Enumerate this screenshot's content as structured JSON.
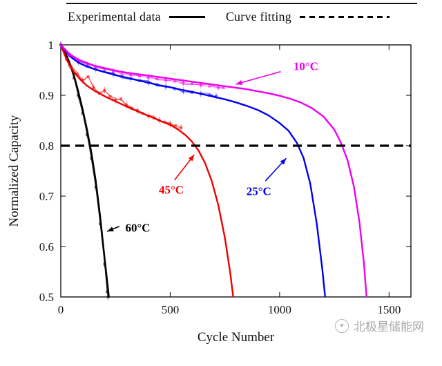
{
  "legend": {
    "items": [
      {
        "label": "Experimental data",
        "style": "solid"
      },
      {
        "label": "Curve fitting",
        "style": "dashed"
      }
    ]
  },
  "watermark": {
    "text": "北极星储能网",
    "icon": "star-logo"
  },
  "chart_data": {
    "type": "line",
    "title": "",
    "xlabel": "Cycle Number",
    "ylabel": "Normalized Capacity",
    "xlim": [
      0,
      1600
    ],
    "ylim": [
      0.5,
      1.0
    ],
    "xtick_values": [
      0,
      500,
      1000,
      1500
    ],
    "xtick_labels": [
      "0",
      "500",
      "1000",
      "1500"
    ],
    "ytick_values": [
      0.5,
      0.6,
      0.7,
      0.8,
      0.9,
      1.0
    ],
    "ytick_labels": [
      "0.5",
      "0.6",
      "0.7",
      "0.8",
      "0.9",
      "1"
    ],
    "grid": false,
    "legend_position": "top",
    "threshold": {
      "y": 0.8,
      "style": "dashed",
      "color": "#000000"
    },
    "series": [
      {
        "name": "60°C",
        "color": "#000000",
        "experimental": [
          [
            0,
            1.0
          ],
          [
            20,
            0.982
          ],
          [
            40,
            0.96
          ],
          [
            60,
            0.934
          ],
          [
            80,
            0.9
          ],
          [
            100,
            0.864
          ],
          [
            120,
            0.822
          ],
          [
            140,
            0.775
          ],
          [
            160,
            0.718
          ],
          [
            180,
            0.645
          ],
          [
            200,
            0.565
          ],
          [
            212,
            0.51
          ],
          [
            216,
            0.5
          ]
        ],
        "fit": [
          [
            0,
            1.0
          ],
          [
            20,
            0.985
          ],
          [
            40,
            0.965
          ],
          [
            60,
            0.94
          ],
          [
            80,
            0.908
          ],
          [
            100,
            0.872
          ],
          [
            120,
            0.832
          ],
          [
            140,
            0.786
          ],
          [
            160,
            0.73
          ],
          [
            180,
            0.66
          ],
          [
            200,
            0.578
          ],
          [
            215,
            0.52
          ],
          [
            220,
            0.5
          ]
        ]
      },
      {
        "name": "45°C",
        "color": "#ee0000",
        "experimental": [
          [
            0,
            1.0
          ],
          [
            25,
            0.972
          ],
          [
            50,
            0.955
          ],
          [
            75,
            0.942
          ],
          [
            100,
            0.93
          ],
          [
            125,
            0.937
          ],
          [
            150,
            0.915
          ],
          [
            175,
            0.905
          ],
          [
            200,
            0.91
          ],
          [
            225,
            0.898
          ],
          [
            250,
            0.89
          ],
          [
            275,
            0.893
          ],
          [
            300,
            0.881
          ],
          [
            325,
            0.874
          ],
          [
            350,
            0.87
          ],
          [
            375,
            0.864
          ],
          [
            400,
            0.859
          ],
          [
            425,
            0.855
          ],
          [
            450,
            0.851
          ],
          [
            475,
            0.847
          ],
          [
            500,
            0.843
          ],
          [
            525,
            0.84
          ],
          [
            550,
            0.836
          ]
        ],
        "fit": [
          [
            0,
            1.0
          ],
          [
            30,
            0.968
          ],
          [
            60,
            0.946
          ],
          [
            90,
            0.931
          ],
          [
            120,
            0.919
          ],
          [
            150,
            0.91
          ],
          [
            180,
            0.903
          ],
          [
            210,
            0.896
          ],
          [
            240,
            0.89
          ],
          [
            270,
            0.884
          ],
          [
            300,
            0.878
          ],
          [
            330,
            0.872
          ],
          [
            360,
            0.867
          ],
          [
            390,
            0.861
          ],
          [
            420,
            0.856
          ],
          [
            450,
            0.85
          ],
          [
            480,
            0.845
          ],
          [
            510,
            0.839
          ],
          [
            540,
            0.831
          ],
          [
            570,
            0.821
          ],
          [
            600,
            0.808
          ],
          [
            630,
            0.79
          ],
          [
            660,
            0.765
          ],
          [
            690,
            0.73
          ],
          [
            720,
            0.682
          ],
          [
            750,
            0.617
          ],
          [
            775,
            0.545
          ],
          [
            788,
            0.5
          ]
        ]
      },
      {
        "name": "25°C",
        "color": "#0000ee",
        "experimental": [
          [
            0,
            1.0
          ],
          [
            40,
            0.979
          ],
          [
            80,
            0.966
          ],
          [
            120,
            0.958
          ],
          [
            160,
            0.952
          ],
          [
            200,
            0.947
          ],
          [
            240,
            0.942
          ],
          [
            280,
            0.938
          ],
          [
            320,
            0.933
          ],
          [
            360,
            0.929
          ],
          [
            400,
            0.925
          ],
          [
            440,
            0.921
          ],
          [
            480,
            0.917
          ],
          [
            520,
            0.913
          ],
          [
            560,
            0.909
          ],
          [
            600,
            0.906
          ],
          [
            640,
            0.903
          ],
          [
            680,
            0.9
          ],
          [
            710,
            0.898
          ]
        ],
        "fit": [
          [
            0,
            1.0
          ],
          [
            40,
            0.978
          ],
          [
            80,
            0.965
          ],
          [
            120,
            0.957
          ],
          [
            160,
            0.951
          ],
          [
            200,
            0.946
          ],
          [
            250,
            0.94
          ],
          [
            300,
            0.935
          ],
          [
            350,
            0.93
          ],
          [
            400,
            0.925
          ],
          [
            450,
            0.92
          ],
          [
            500,
            0.916
          ],
          [
            550,
            0.911
          ],
          [
            600,
            0.907
          ],
          [
            650,
            0.902
          ],
          [
            700,
            0.897
          ],
          [
            750,
            0.892
          ],
          [
            800,
            0.886
          ],
          [
            850,
            0.879
          ],
          [
            900,
            0.871
          ],
          [
            950,
            0.86
          ],
          [
            1000,
            0.845
          ],
          [
            1040,
            0.83
          ],
          [
            1080,
            0.805
          ],
          [
            1110,
            0.775
          ],
          [
            1140,
            0.725
          ],
          [
            1170,
            0.645
          ],
          [
            1195,
            0.555
          ],
          [
            1208,
            0.5
          ]
        ]
      },
      {
        "name": "10°C",
        "color": "#ee00ee",
        "experimental": [
          [
            0,
            1.0
          ],
          [
            40,
            0.98
          ],
          [
            80,
            0.969
          ],
          [
            120,
            0.962
          ],
          [
            160,
            0.957
          ],
          [
            200,
            0.952
          ],
          [
            240,
            0.948
          ],
          [
            280,
            0.945
          ],
          [
            320,
            0.941
          ],
          [
            360,
            0.938
          ],
          [
            400,
            0.935
          ],
          [
            440,
            0.933
          ],
          [
            480,
            0.93
          ],
          [
            520,
            0.928
          ],
          [
            560,
            0.925
          ],
          [
            600,
            0.923
          ],
          [
            640,
            0.92
          ],
          [
            680,
            0.918
          ],
          [
            720,
            0.916
          ],
          [
            745,
            0.915
          ]
        ],
        "fit": [
          [
            0,
            1.0
          ],
          [
            40,
            0.982
          ],
          [
            80,
            0.971
          ],
          [
            120,
            0.964
          ],
          [
            160,
            0.958
          ],
          [
            200,
            0.954
          ],
          [
            250,
            0.949
          ],
          [
            300,
            0.945
          ],
          [
            350,
            0.942
          ],
          [
            400,
            0.939
          ],
          [
            450,
            0.936
          ],
          [
            500,
            0.933
          ],
          [
            550,
            0.93
          ],
          [
            600,
            0.927
          ],
          [
            650,
            0.924
          ],
          [
            700,
            0.921
          ],
          [
            750,
            0.918
          ],
          [
            800,
            0.915
          ],
          [
            850,
            0.912
          ],
          [
            900,
            0.908
          ],
          [
            950,
            0.904
          ],
          [
            1000,
            0.899
          ],
          [
            1050,
            0.893
          ],
          [
            1100,
            0.885
          ],
          [
            1150,
            0.874
          ],
          [
            1200,
            0.858
          ],
          [
            1250,
            0.832
          ],
          [
            1280,
            0.806
          ],
          [
            1310,
            0.772
          ],
          [
            1340,
            0.718
          ],
          [
            1365,
            0.648
          ],
          [
            1385,
            0.568
          ],
          [
            1397,
            0.5
          ]
        ]
      }
    ],
    "annotations": [
      {
        "label": "60°C",
        "color": "#000000",
        "text_at": [
          352,
          0.638
        ],
        "arrow_from": [
          268,
          0.64
        ],
        "arrow_to": [
          212,
          0.63
        ]
      },
      {
        "label": "45°C",
        "color": "#ee0000",
        "text_at": [
          505,
          0.713
        ],
        "arrow_from": [
          520,
          0.732
        ],
        "arrow_to": [
          610,
          0.782
        ]
      },
      {
        "label": "25°C",
        "color": "#0000ee",
        "text_at": [
          905,
          0.71
        ],
        "arrow_from": [
          935,
          0.73
        ],
        "arrow_to": [
          1030,
          0.775
        ]
      },
      {
        "label": "10°C",
        "color": "#ee00ee",
        "text_at": [
          1120,
          0.958
        ],
        "arrow_from": [
          1005,
          0.947
        ],
        "arrow_to": [
          800,
          0.922
        ]
      }
    ]
  }
}
